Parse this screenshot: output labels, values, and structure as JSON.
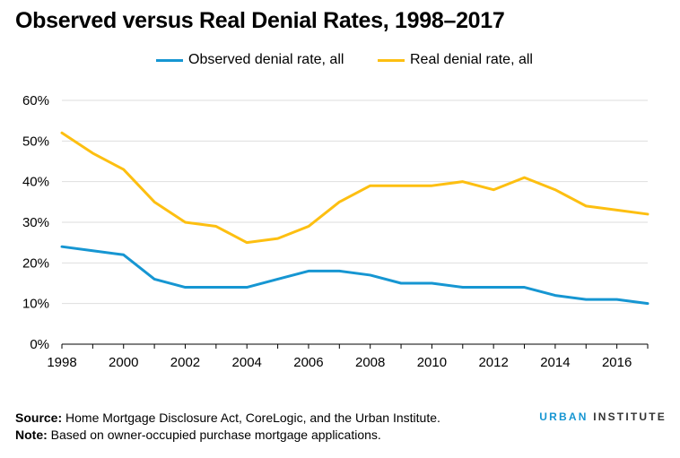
{
  "chart_data": {
    "type": "line",
    "title": "Observed versus Real Denial Rates, 1998–2017",
    "x": [
      1998,
      1999,
      2000,
      2001,
      2002,
      2003,
      2004,
      2005,
      2006,
      2007,
      2008,
      2009,
      2010,
      2011,
      2012,
      2013,
      2014,
      2015,
      2016,
      2017
    ],
    "x_ticks": [
      "1998",
      "2000",
      "2002",
      "2004",
      "2006",
      "2008",
      "2010",
      "2012",
      "2014",
      "2016"
    ],
    "y_ticks": [
      "0%",
      "10%",
      "20%",
      "30%",
      "40%",
      "50%",
      "60%"
    ],
    "ylim": [
      0,
      60
    ],
    "grid": true,
    "legend_position": "top-center",
    "series": [
      {
        "name": "Observed denial rate, all",
        "color": "#1696d2",
        "values": [
          24,
          23,
          22,
          16,
          14,
          14,
          14,
          16,
          18,
          18,
          17,
          15,
          15,
          14,
          14,
          14,
          12,
          11,
          11,
          10
        ]
      },
      {
        "name": "Real denial rate, all",
        "color": "#fdbf11",
        "values": [
          52,
          47,
          43,
          35,
          30,
          29,
          25,
          26,
          29,
          35,
          39,
          39,
          39,
          40,
          38,
          41,
          38,
          34,
          33,
          32
        ]
      }
    ]
  },
  "footer": {
    "source_label": "Source:",
    "source_text": " Home Mortgage Disclosure Act, CoreLogic, and the Urban Institute.",
    "note_label": "Note:",
    "note_text": " Based on owner-occupied purchase mortgage applications."
  },
  "brand": {
    "part1": "URBAN",
    "part2": "INSTITUTE"
  }
}
